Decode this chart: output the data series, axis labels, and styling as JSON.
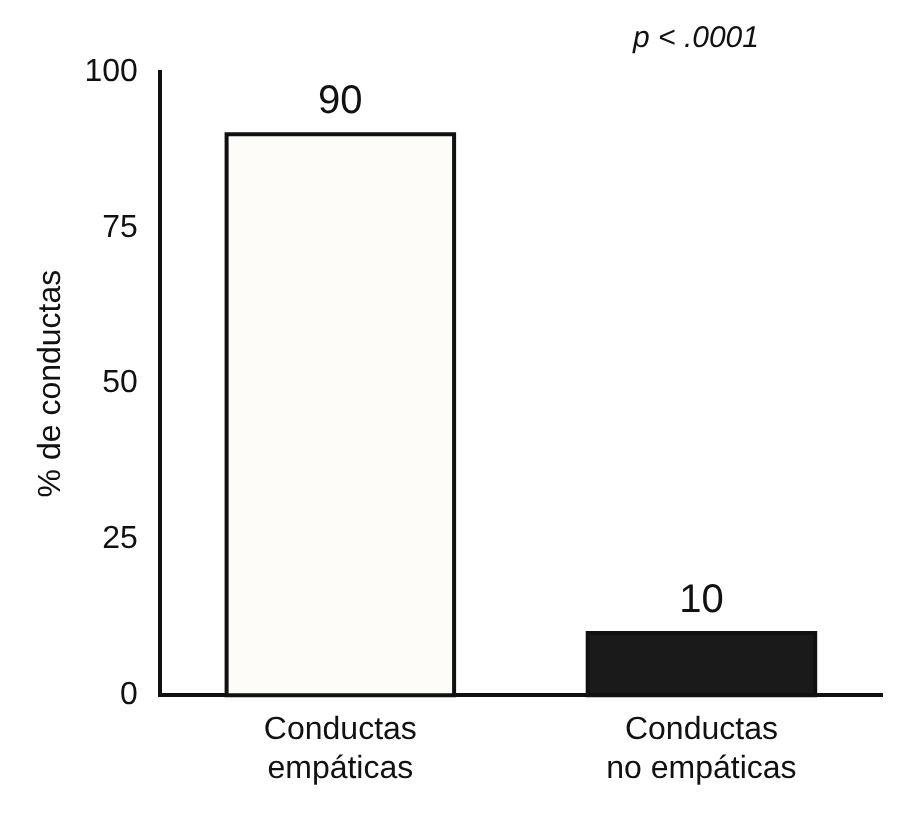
{
  "chart_data": {
    "type": "bar",
    "ylabel": "% de conductas",
    "categories": [
      "Conductas empáticas",
      "Conductas no empáticas"
    ],
    "values": [
      90,
      10
    ],
    "colors": [
      "#fdfcf8",
      "#1a1a1a"
    ],
    "ylim": [
      0,
      100
    ],
    "yticks": [
      0,
      25,
      50,
      75,
      100
    ],
    "grid": false,
    "legend": false,
    "data_labels": true,
    "annotations": [
      "p < .0001"
    ]
  }
}
